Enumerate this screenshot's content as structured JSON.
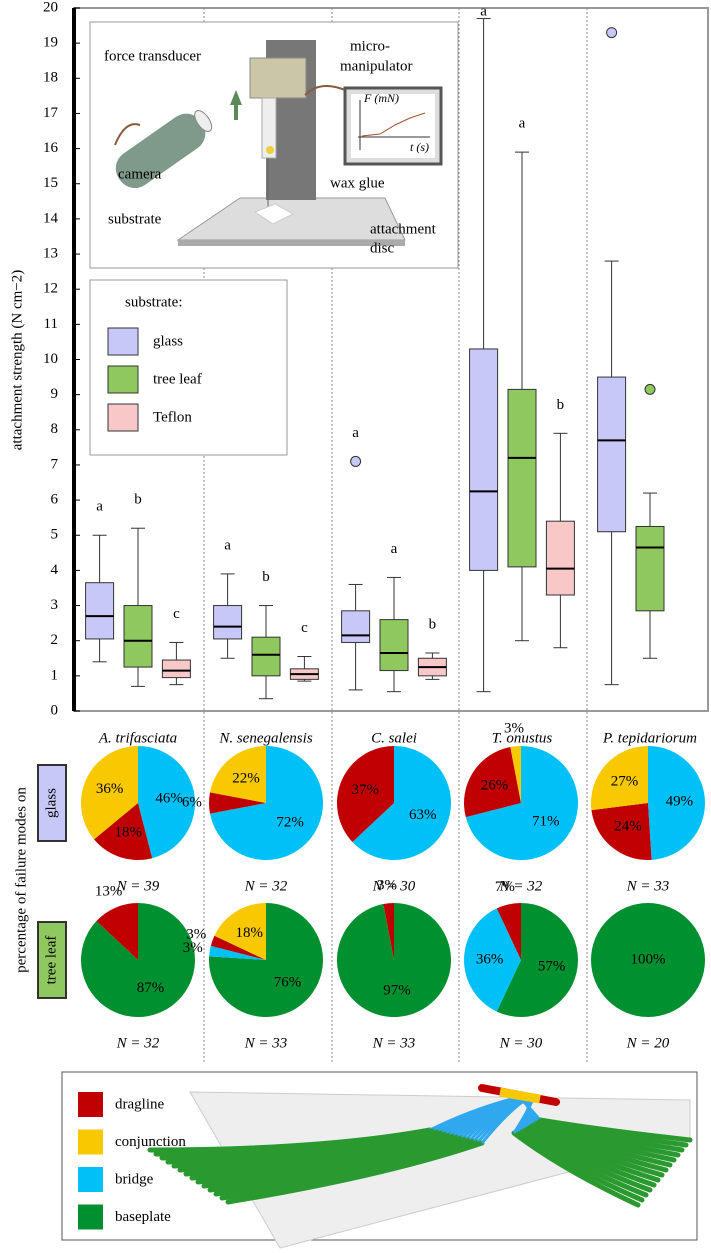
{
  "chart_data": [
    {
      "type": "box",
      "ylabel": "attachment strength (N cm−2)",
      "ylim": [
        0,
        20
      ],
      "yticks": [
        0,
        1,
        2,
        3,
        4,
        5,
        6,
        7,
        8,
        9,
        10,
        11,
        12,
        13,
        14,
        15,
        16,
        17,
        18,
        19,
        20
      ],
      "categories": [
        "A. trifasciata",
        "N. senegalensis",
        "C. salei",
        "T. onustus",
        "P. tepidariorum"
      ],
      "legend_title": "substrate:",
      "series": [
        {
          "name": "glass",
          "color": "#c8c8f8",
          "letters": [
            "a",
            "a",
            "a",
            "a",
            null
          ],
          "values": [
            {
              "min": 1.4,
              "q1": 2.05,
              "median": 2.7,
              "q3": 3.65,
              "max": 5.0
            },
            {
              "min": 1.5,
              "q1": 2.05,
              "median": 2.4,
              "q3": 3.0,
              "max": 3.9
            },
            {
              "min": 0.6,
              "q1": 1.95,
              "median": 2.15,
              "q3": 2.85,
              "max": 3.6,
              "outliers": [
                7.1
              ]
            },
            {
              "min": 0.55,
              "q1": 4.0,
              "median": 6.25,
              "q3": 10.3,
              "max": 19.7
            },
            {
              "min": 0.75,
              "q1": 5.1,
              "median": 7.7,
              "q3": 9.5,
              "max": 12.8,
              "outliers": [
                19.3
              ]
            }
          ]
        },
        {
          "name": "tree leaf",
          "color": "#90c860",
          "letters": [
            "b",
            "b",
            "a",
            "a",
            null
          ],
          "values": [
            {
              "min": 0.7,
              "q1": 1.25,
              "median": 2.0,
              "q3": 3.0,
              "max": 5.2
            },
            {
              "min": 0.35,
              "q1": 1.0,
              "median": 1.6,
              "q3": 2.1,
              "max": 3.0
            },
            {
              "min": 0.55,
              "q1": 1.15,
              "median": 1.65,
              "q3": 2.6,
              "max": 3.8
            },
            {
              "min": 2.0,
              "q1": 4.1,
              "median": 7.2,
              "q3": 9.15,
              "max": 15.9
            },
            {
              "min": 1.5,
              "q1": 2.85,
              "median": 4.65,
              "q3": 5.25,
              "max": 6.2,
              "outliers": [
                9.15
              ]
            }
          ]
        },
        {
          "name": "Teflon",
          "color": "#f8c8c8",
          "letters": [
            "c",
            "c",
            "b",
            "b",
            null
          ],
          "values": [
            {
              "min": 0.75,
              "q1": 0.95,
              "median": 1.15,
              "q3": 1.45,
              "max": 1.95
            },
            {
              "min": 0.85,
              "q1": 0.9,
              "median": 1.05,
              "q3": 1.2,
              "max": 1.55
            },
            {
              "min": 0.9,
              "q1": 1.0,
              "median": 1.25,
              "q3": 1.5,
              "max": 1.65
            },
            {
              "min": 1.8,
              "q1": 3.3,
              "median": 4.05,
              "q3": 5.4,
              "max": 7.9
            },
            null
          ]
        }
      ]
    },
    {
      "type": "pie",
      "ylabel": "percentage of failure modes on",
      "rows": [
        "glass",
        "tree leaf"
      ],
      "legend": [
        {
          "name": "dragline",
          "color": "#c00000"
        },
        {
          "name": "conjunction",
          "color": "#f8c800"
        },
        {
          "name": "bridge",
          "color": "#00c0f8"
        },
        {
          "name": "baseplate",
          "color": "#009030"
        }
      ],
      "pies": [
        [
          {
            "n": "N = 39",
            "values": [
              18,
              36,
              46,
              null
            ],
            "value_labels": [
              "18%",
              "36%",
              "46%",
              null
            ]
          },
          {
            "n": "N = 32",
            "values": [
              6,
              22,
              72,
              null
            ],
            "value_labels": [
              "6%",
              "22%",
              "72%",
              null
            ]
          },
          {
            "n": "N = 30",
            "values": [
              37,
              null,
              63,
              null
            ],
            "value_labels": [
              "37%",
              null,
              "63%",
              null
            ]
          },
          {
            "n": "N = 32",
            "values": [
              26,
              3,
              71,
              null
            ],
            "value_labels": [
              "26%",
              "3%",
              "71%",
              null
            ]
          },
          {
            "n": "N = 33",
            "values": [
              24,
              27,
              49,
              null
            ],
            "value_labels": [
              "24%",
              "27%",
              "49%",
              null
            ]
          }
        ],
        [
          {
            "n": "N = 32",
            "values": [
              13,
              null,
              null,
              87
            ],
            "value_labels": [
              "13%",
              null,
              null,
              "87%"
            ]
          },
          {
            "n": "N = 33",
            "values": [
              3,
              18,
              3,
              76
            ],
            "value_labels": [
              "3%",
              "18%",
              "3%",
              "76%"
            ]
          },
          {
            "n": "N = 33",
            "values": [
              3,
              null,
              null,
              97
            ],
            "value_labels": [
              "3%",
              null,
              null,
              "97%"
            ]
          },
          {
            "n": "N = 30",
            "values": [
              7,
              null,
              36,
              57
            ],
            "value_labels": [
              "7%",
              null,
              "36%",
              "57%"
            ]
          },
          {
            "n": "N = 20",
            "values": [
              null,
              null,
              null,
              100
            ],
            "value_labels": [
              null,
              null,
              null,
              "100%"
            ]
          }
        ]
      ]
    }
  ],
  "inset": {
    "force_transducer": "force transducer",
    "micro": "micro-",
    "manipulator": "manipulator",
    "camera": "camera",
    "wax_glue": "wax glue",
    "substrate": "substrate",
    "attachment": "attachment",
    "disc": "disc",
    "f_axis": "F (mN)",
    "t_axis": "t (s)"
  }
}
